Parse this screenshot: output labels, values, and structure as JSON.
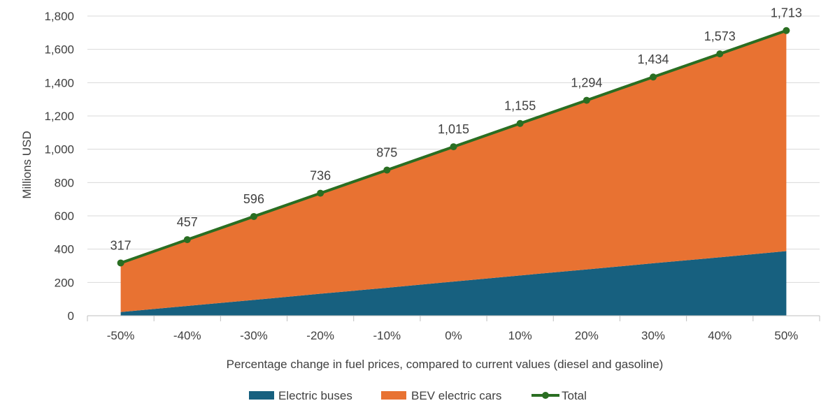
{
  "chart_data": {
    "type": "area",
    "stacked": true,
    "title": "",
    "xlabel": "Percentage change in fuel prices, compared to current values (diesel and gasoline)",
    "ylabel": "Millions USD",
    "categories": [
      "-50%",
      "-40%",
      "-30%",
      "-20%",
      "-10%",
      "0%",
      "10%",
      "20%",
      "30%",
      "40%",
      "50%"
    ],
    "ylim": [
      0,
      1800
    ],
    "yticks": [
      "0",
      "200",
      "400",
      "600",
      "800",
      "1,000",
      "1,200",
      "1,400",
      "1,600",
      "1,800"
    ],
    "series": [
      {
        "name": "Electric buses",
        "type": "area",
        "color": "#17607f",
        "values": [
          22,
          59,
          95,
          132,
          168,
          205,
          242,
          278,
          315,
          351,
          388
        ]
      },
      {
        "name": "BEV electric cars",
        "type": "area",
        "color": "#e87232",
        "values": [
          295,
          398,
          501,
          604,
          707,
          810,
          913,
          1016,
          1119,
          1222,
          1325
        ]
      },
      {
        "name": "Total",
        "type": "line",
        "color": "#2a6e22",
        "values": [
          317,
          457,
          596,
          736,
          875,
          1015,
          1155,
          1294,
          1434,
          1573,
          1713
        ],
        "labels": [
          "317",
          "457",
          "596",
          "736",
          "875",
          "1,015",
          "1,155",
          "1,294",
          "1,434",
          "1,573",
          "1,713"
        ]
      }
    ],
    "grid": true,
    "legend": "bottom"
  }
}
